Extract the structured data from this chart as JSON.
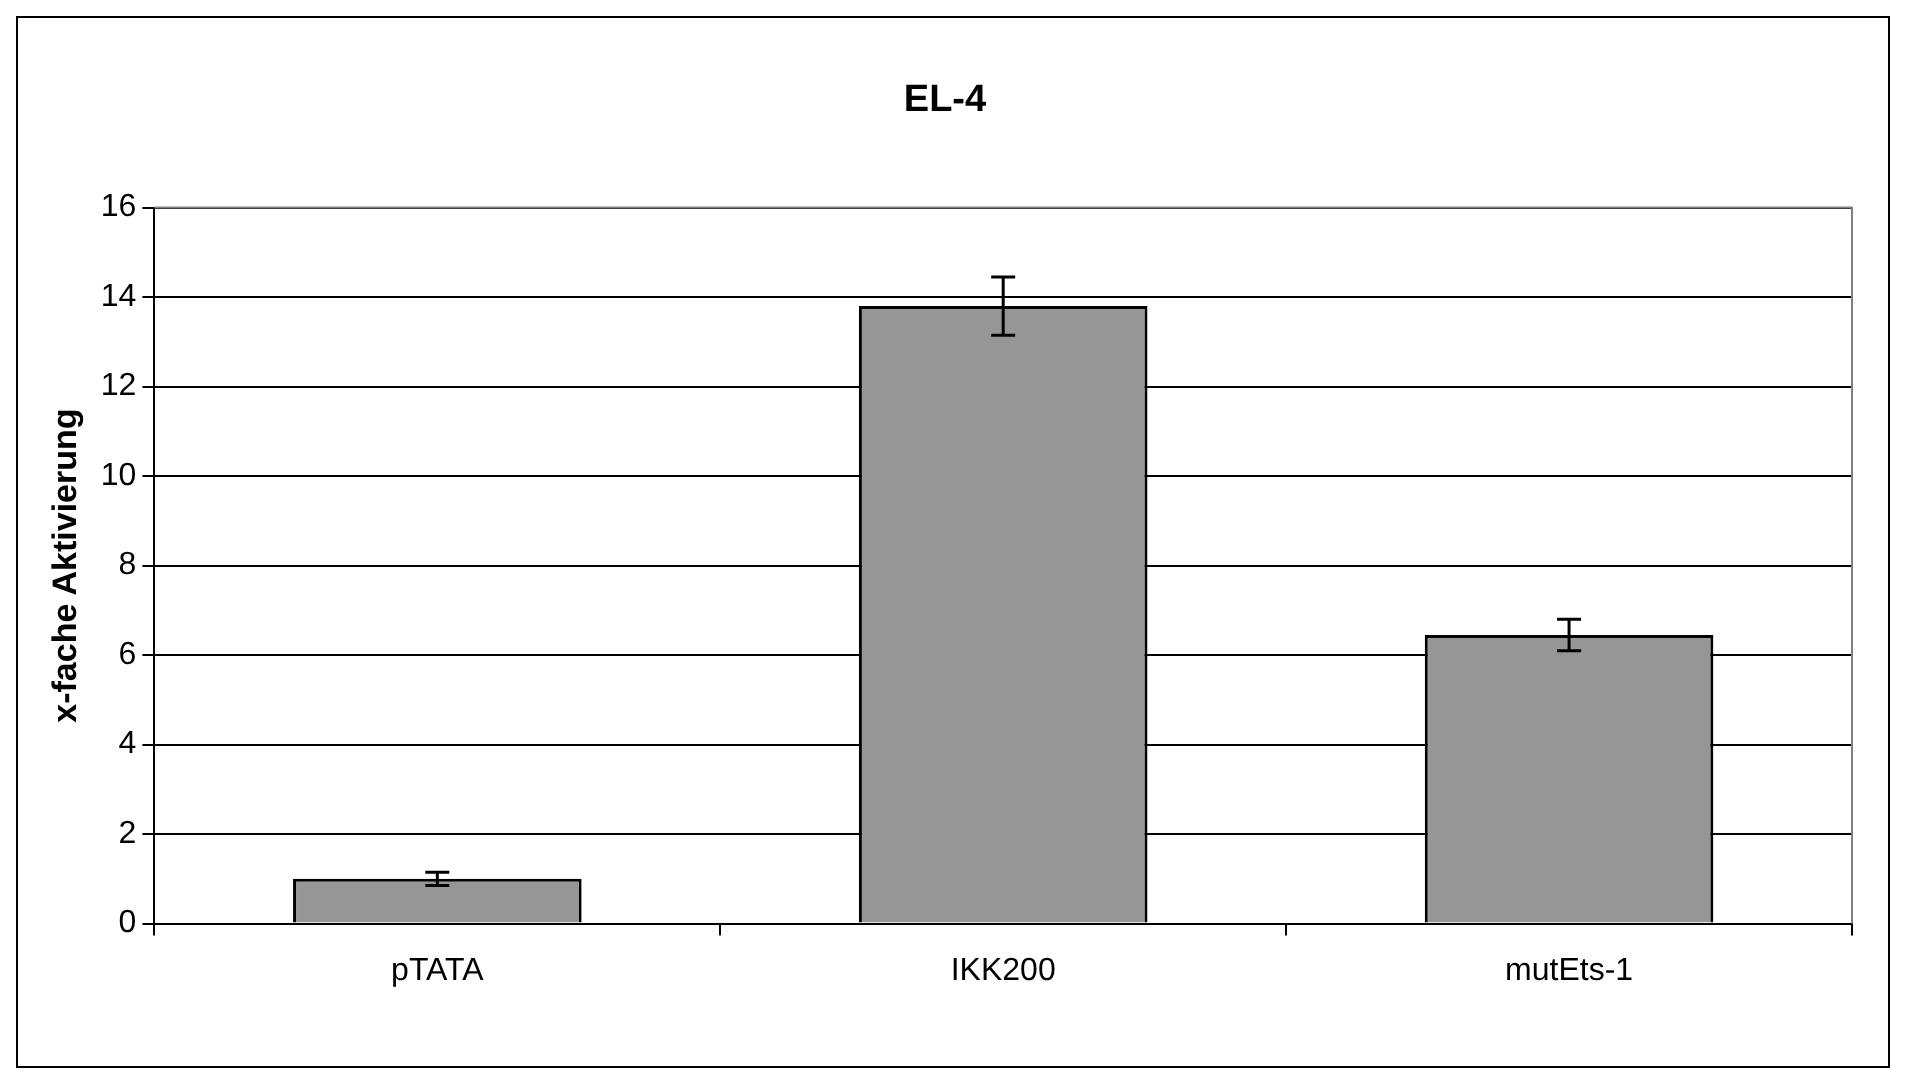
{
  "chart_data": {
    "type": "bar",
    "title": "EL-4",
    "ylabel": "x-fache Aktivierung",
    "categories": [
      "pTATA",
      "IKK200",
      "mutEts-1"
    ],
    "values": [
      1.0,
      13.8,
      6.45
    ],
    "errors": [
      0.15,
      0.65,
      0.35
    ],
    "color": "#969696",
    "ylim": [
      0,
      16
    ],
    "yticks": [
      0,
      2,
      4,
      6,
      8,
      10,
      12,
      14,
      16
    ],
    "grid": "y",
    "legend": false
  }
}
